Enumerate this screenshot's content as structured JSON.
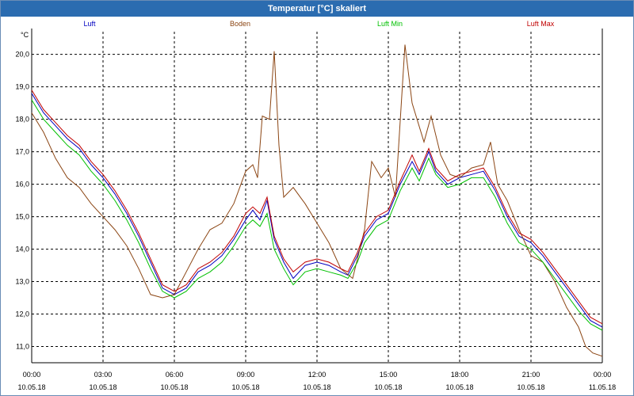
{
  "window": {
    "title": "Temperatur [°C] skaliert"
  },
  "chart_data": {
    "type": "line",
    "unit": "°C",
    "ylim": [
      10.5,
      20.7
    ],
    "yticks": [
      11.0,
      12.0,
      13.0,
      14.0,
      15.0,
      16.0,
      17.0,
      18.0,
      19.0,
      20.0
    ],
    "ytick_labels": [
      "11,0",
      "12,0",
      "13,0",
      "14,0",
      "15,0",
      "16,0",
      "17,0",
      "18,0",
      "19,0",
      "20,0"
    ],
    "xlim": [
      0,
      24
    ],
    "xticks": [
      0,
      3,
      6,
      9,
      12,
      15,
      18,
      21,
      24
    ],
    "xtick_labels": [
      {
        "time": "00:00",
        "date": "10.05.18"
      },
      {
        "time": "03:00",
        "date": "10.05.18"
      },
      {
        "time": "06:00",
        "date": "10.05.18"
      },
      {
        "time": "09:00",
        "date": "10.05.18"
      },
      {
        "time": "12:00",
        "date": "10.05.18"
      },
      {
        "time": "15:00",
        "date": "10.05.18"
      },
      {
        "time": "18:00",
        "date": "10.05.18"
      },
      {
        "time": "21:00",
        "date": "10.05.18"
      },
      {
        "time": "00:00",
        "date": "11.05.18"
      }
    ],
    "grid": true,
    "legend_position": "top",
    "series": [
      {
        "name": "Luft",
        "color": "#0000c0",
        "points": [
          [
            0,
            18.8
          ],
          [
            0.5,
            18.2
          ],
          [
            1,
            17.8
          ],
          [
            1.5,
            17.4
          ],
          [
            2,
            17.1
          ],
          [
            2.5,
            16.6
          ],
          [
            3,
            16.2
          ],
          [
            3.5,
            15.7
          ],
          [
            4,
            15.1
          ],
          [
            4.5,
            14.4
          ],
          [
            5,
            13.6
          ],
          [
            5.5,
            12.8
          ],
          [
            6,
            12.6
          ],
          [
            6.5,
            12.8
          ],
          [
            7,
            13.3
          ],
          [
            7.5,
            13.5
          ],
          [
            8,
            13.8
          ],
          [
            8.5,
            14.3
          ],
          [
            9,
            14.9
          ],
          [
            9.3,
            15.2
          ],
          [
            9.6,
            14.9
          ],
          [
            9.9,
            15.5
          ],
          [
            10.2,
            14.3
          ],
          [
            10.6,
            13.6
          ],
          [
            11,
            13.1
          ],
          [
            11.5,
            13.5
          ],
          [
            12,
            13.6
          ],
          [
            12.5,
            13.5
          ],
          [
            13,
            13.3
          ],
          [
            13.3,
            13.2
          ],
          [
            13.7,
            13.8
          ],
          [
            14,
            14.4
          ],
          [
            14.5,
            14.9
          ],
          [
            15,
            15.1
          ],
          [
            15.5,
            16.0
          ],
          [
            16,
            16.7
          ],
          [
            16.3,
            16.3
          ],
          [
            16.7,
            17.0
          ],
          [
            17,
            16.4
          ],
          [
            17.5,
            16.0
          ],
          [
            18,
            16.2
          ],
          [
            18.5,
            16.3
          ],
          [
            19,
            16.4
          ],
          [
            19.5,
            15.8
          ],
          [
            20,
            15.0
          ],
          [
            20.5,
            14.4
          ],
          [
            21,
            14.2
          ],
          [
            21.5,
            13.8
          ],
          [
            22,
            13.3
          ],
          [
            22.5,
            12.8
          ],
          [
            23,
            12.3
          ],
          [
            23.5,
            11.8
          ],
          [
            24,
            11.6
          ]
        ]
      },
      {
        "name": "Boden",
        "color": "#8b4513",
        "points": [
          [
            0,
            18.2
          ],
          [
            0.5,
            17.6
          ],
          [
            1,
            16.8
          ],
          [
            1.5,
            16.2
          ],
          [
            2,
            15.9
          ],
          [
            2.5,
            15.4
          ],
          [
            3,
            15.0
          ],
          [
            3.5,
            14.6
          ],
          [
            4,
            14.1
          ],
          [
            4.5,
            13.4
          ],
          [
            5,
            12.6
          ],
          [
            5.5,
            12.5
          ],
          [
            6,
            12.6
          ],
          [
            6.5,
            13.3
          ],
          [
            7,
            14.0
          ],
          [
            7.5,
            14.6
          ],
          [
            8,
            14.8
          ],
          [
            8.5,
            15.4
          ],
          [
            9,
            16.4
          ],
          [
            9.3,
            16.6
          ],
          [
            9.5,
            16.2
          ],
          [
            9.7,
            18.1
          ],
          [
            10,
            18.0
          ],
          [
            10.2,
            20.1
          ],
          [
            10.4,
            17.2
          ],
          [
            10.6,
            15.6
          ],
          [
            11,
            15.9
          ],
          [
            11.5,
            15.4
          ],
          [
            12,
            14.8
          ],
          [
            12.5,
            14.2
          ],
          [
            13,
            13.4
          ],
          [
            13.5,
            13.1
          ],
          [
            14,
            14.6
          ],
          [
            14.3,
            16.7
          ],
          [
            14.7,
            16.2
          ],
          [
            15,
            16.5
          ],
          [
            15.3,
            15.6
          ],
          [
            15.7,
            20.3
          ],
          [
            16,
            18.5
          ],
          [
            16.5,
            17.3
          ],
          [
            16.8,
            18.1
          ],
          [
            17.2,
            16.9
          ],
          [
            17.6,
            16.3
          ],
          [
            18,
            16.2
          ],
          [
            18.5,
            16.5
          ],
          [
            19,
            16.6
          ],
          [
            19.3,
            17.3
          ],
          [
            19.6,
            16.0
          ],
          [
            20,
            15.5
          ],
          [
            20.5,
            14.6
          ],
          [
            21,
            13.8
          ],
          [
            21.5,
            13.6
          ],
          [
            22,
            13.0
          ],
          [
            22.5,
            12.2
          ],
          [
            23,
            11.6
          ],
          [
            23.3,
            11.0
          ],
          [
            23.6,
            10.8
          ],
          [
            24,
            10.7
          ]
        ]
      },
      {
        "name": "Luft Min",
        "color": "#00c000",
        "points": [
          [
            0,
            18.6
          ],
          [
            0.5,
            18.0
          ],
          [
            1,
            17.6
          ],
          [
            1.5,
            17.2
          ],
          [
            2,
            16.9
          ],
          [
            2.5,
            16.4
          ],
          [
            3,
            16.0
          ],
          [
            3.5,
            15.5
          ],
          [
            4,
            14.9
          ],
          [
            4.5,
            14.2
          ],
          [
            5,
            13.4
          ],
          [
            5.5,
            12.7
          ],
          [
            6,
            12.5
          ],
          [
            6.5,
            12.7
          ],
          [
            7,
            13.1
          ],
          [
            7.5,
            13.3
          ],
          [
            8,
            13.6
          ],
          [
            8.5,
            14.1
          ],
          [
            9,
            14.7
          ],
          [
            9.3,
            14.9
          ],
          [
            9.6,
            14.7
          ],
          [
            9.9,
            15.1
          ],
          [
            10.2,
            14.0
          ],
          [
            10.6,
            13.4
          ],
          [
            11,
            12.9
          ],
          [
            11.5,
            13.3
          ],
          [
            12,
            13.4
          ],
          [
            12.5,
            13.3
          ],
          [
            13,
            13.2
          ],
          [
            13.3,
            13.1
          ],
          [
            13.7,
            13.6
          ],
          [
            14,
            14.2
          ],
          [
            14.5,
            14.7
          ],
          [
            15,
            14.9
          ],
          [
            15.5,
            15.8
          ],
          [
            16,
            16.5
          ],
          [
            16.3,
            16.1
          ],
          [
            16.7,
            16.8
          ],
          [
            17,
            16.3
          ],
          [
            17.5,
            15.9
          ],
          [
            18,
            16.0
          ],
          [
            18.5,
            16.2
          ],
          [
            19,
            16.2
          ],
          [
            19.5,
            15.6
          ],
          [
            20,
            14.8
          ],
          [
            20.5,
            14.2
          ],
          [
            21,
            14.0
          ],
          [
            21.5,
            13.6
          ],
          [
            22,
            13.1
          ],
          [
            22.5,
            12.6
          ],
          [
            23,
            12.1
          ],
          [
            23.5,
            11.7
          ],
          [
            24,
            11.5
          ]
        ]
      },
      {
        "name": "Luft Max",
        "color": "#c00000",
        "points": [
          [
            0,
            18.9
          ],
          [
            0.5,
            18.3
          ],
          [
            1,
            17.9
          ],
          [
            1.5,
            17.5
          ],
          [
            2,
            17.2
          ],
          [
            2.5,
            16.7
          ],
          [
            3,
            16.3
          ],
          [
            3.5,
            15.8
          ],
          [
            4,
            15.2
          ],
          [
            4.5,
            14.5
          ],
          [
            5,
            13.7
          ],
          [
            5.5,
            12.9
          ],
          [
            6,
            12.7
          ],
          [
            6.5,
            12.9
          ],
          [
            7,
            13.4
          ],
          [
            7.5,
            13.6
          ],
          [
            8,
            13.9
          ],
          [
            8.5,
            14.4
          ],
          [
            9,
            15.1
          ],
          [
            9.3,
            15.3
          ],
          [
            9.6,
            15.1
          ],
          [
            9.9,
            15.6
          ],
          [
            10.2,
            14.4
          ],
          [
            10.6,
            13.7
          ],
          [
            11,
            13.3
          ],
          [
            11.5,
            13.6
          ],
          [
            12,
            13.7
          ],
          [
            12.5,
            13.6
          ],
          [
            13,
            13.4
          ],
          [
            13.3,
            13.3
          ],
          [
            13.7,
            13.9
          ],
          [
            14,
            14.5
          ],
          [
            14.5,
            15.0
          ],
          [
            15,
            15.2
          ],
          [
            15.5,
            16.1
          ],
          [
            16,
            16.9
          ],
          [
            16.3,
            16.4
          ],
          [
            16.7,
            17.1
          ],
          [
            17,
            16.5
          ],
          [
            17.5,
            16.1
          ],
          [
            18,
            16.3
          ],
          [
            18.5,
            16.4
          ],
          [
            19,
            16.5
          ],
          [
            19.5,
            15.9
          ],
          [
            20,
            15.1
          ],
          [
            20.5,
            14.5
          ],
          [
            21,
            14.3
          ],
          [
            21.5,
            13.9
          ],
          [
            22,
            13.4
          ],
          [
            22.5,
            12.9
          ],
          [
            23,
            12.4
          ],
          [
            23.5,
            11.9
          ],
          [
            24,
            11.7
          ]
        ]
      }
    ]
  }
}
